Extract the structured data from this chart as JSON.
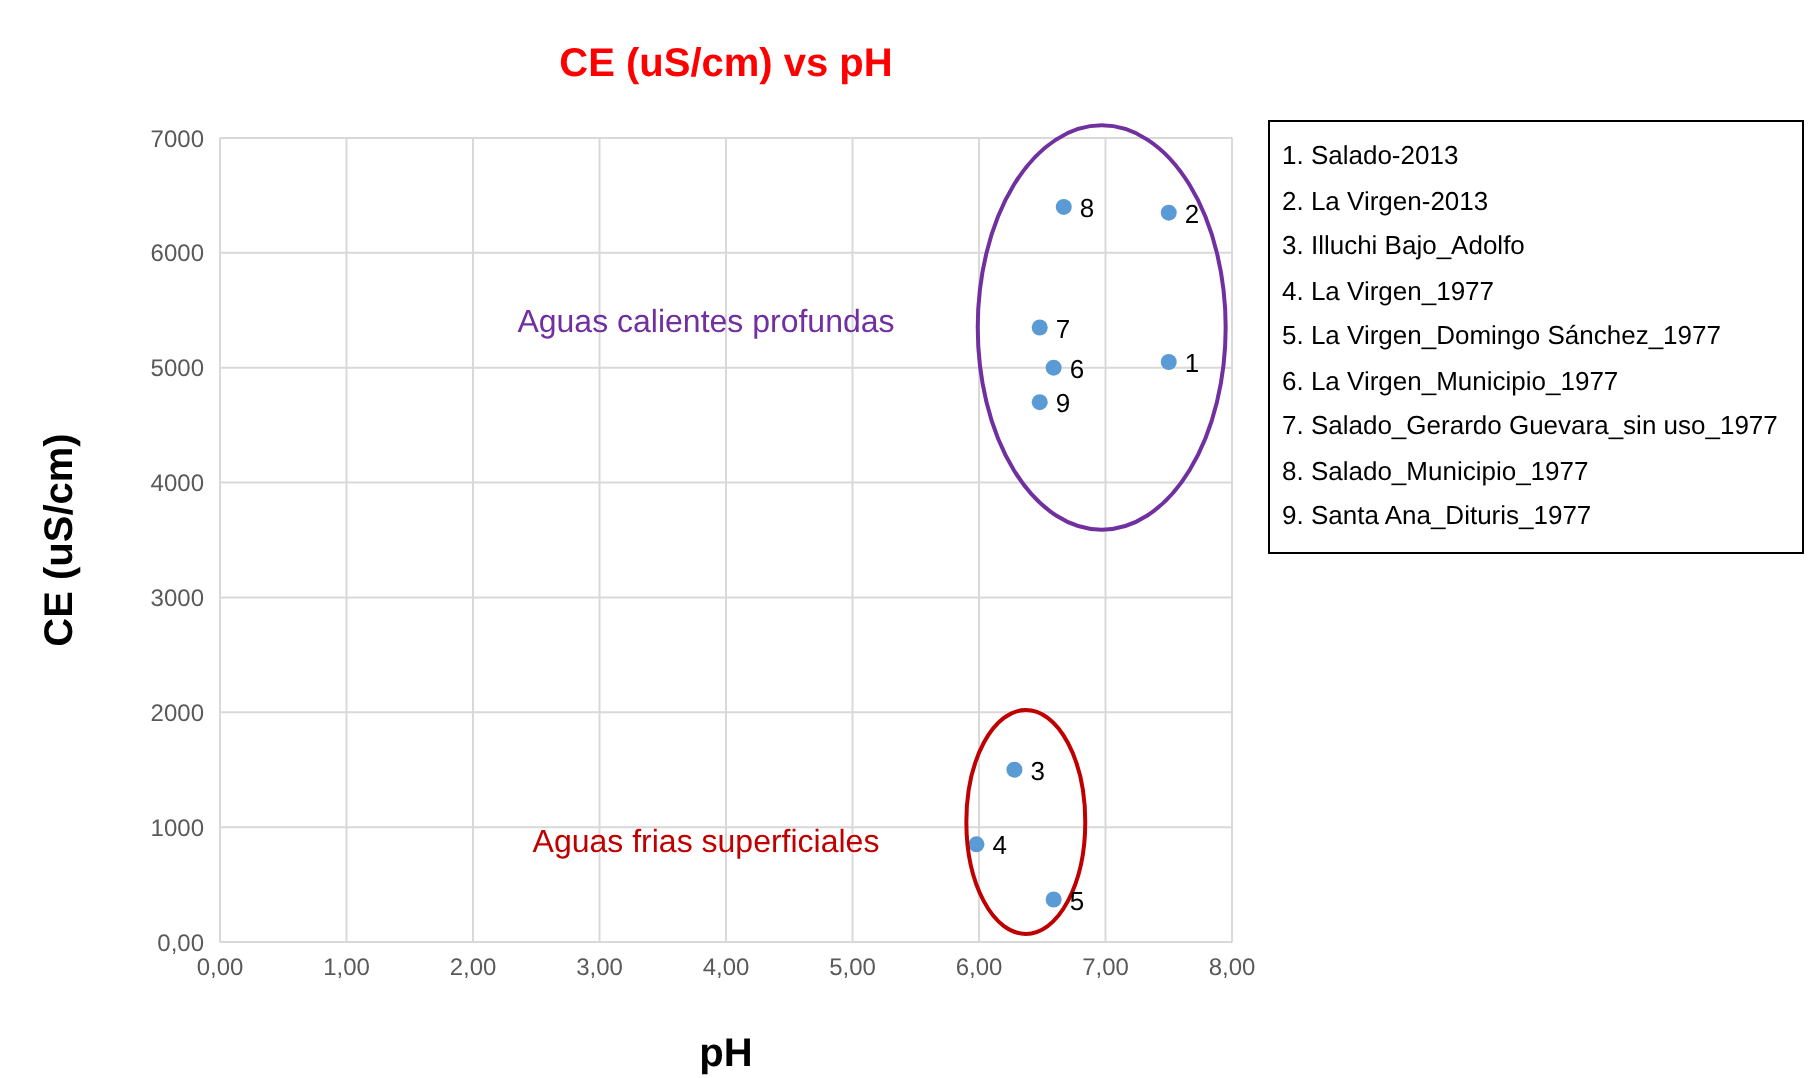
{
  "chart_data": {
    "type": "scatter",
    "title": "CE (uS/cm) vs pH",
    "xlabel": "pH",
    "ylabel": "CE (uS/cm)",
    "x": [
      7.5,
      7.5,
      6.28,
      5.98,
      6.59,
      6.59,
      6.48,
      6.67,
      6.48
    ],
    "values": [
      5050,
      6350,
      1500,
      850,
      370,
      5000,
      5350,
      6400,
      4700
    ],
    "color": "#5b9bd5",
    "marker": "circle",
    "grid": true,
    "xlim": [
      0,
      8
    ],
    "xticks": [
      {
        "value": 0,
        "label": "0,00"
      },
      {
        "value": 1,
        "label": "1,00"
      },
      {
        "value": 2,
        "label": "2,00"
      },
      {
        "value": 3,
        "label": "3,00"
      },
      {
        "value": 4,
        "label": "4,00"
      },
      {
        "value": 5,
        "label": "5,00"
      },
      {
        "value": 6,
        "label": "6,00"
      },
      {
        "value": 7,
        "label": "7,00"
      },
      {
        "value": 8,
        "label": "8,00"
      }
    ],
    "ylim": [
      0,
      7000
    ],
    "yticks": [
      {
        "value": 0,
        "label": "0,00"
      },
      1000,
      2000,
      3000,
      4000,
      5000,
      6000,
      7000
    ],
    "annotations": [
      "1. Salado-2013",
      "2. La Virgen-2013",
      "3. Illuchi Bajo_Adolfo",
      "4. La Virgen_1977",
      "5. La Virgen_Domingo Sánchez_1977",
      "6. La Virgen_Municipio_1977",
      "7. Salado_Gerardo Guevara_sin uso_1977",
      "8. Salado_Municipio_1977",
      "9. Santa Ana_Dituris_1977",
      "Aguas calientes profundas",
      "Aguas frias superficiales",
      {
        "text": "1",
        "x": 7.5,
        "y": 5050
      },
      {
        "text": "2",
        "x": 7.5,
        "y": 6350
      },
      {
        "text": "3",
        "x": 6.28,
        "y": 1500
      },
      {
        "text": "4",
        "x": 5.98,
        "y": 850
      },
      {
        "text": "5",
        "x": 6.59,
        "y": 370
      },
      {
        "text": "6",
        "x": 6.59,
        "y": 5000
      },
      {
        "text": "7",
        "x": 6.48,
        "y": 5350
      },
      {
        "text": "8",
        "x": 6.67,
        "y": 6400
      },
      {
        "text": "9",
        "x": 6.48,
        "y": 4700
      }
    ]
  }
}
